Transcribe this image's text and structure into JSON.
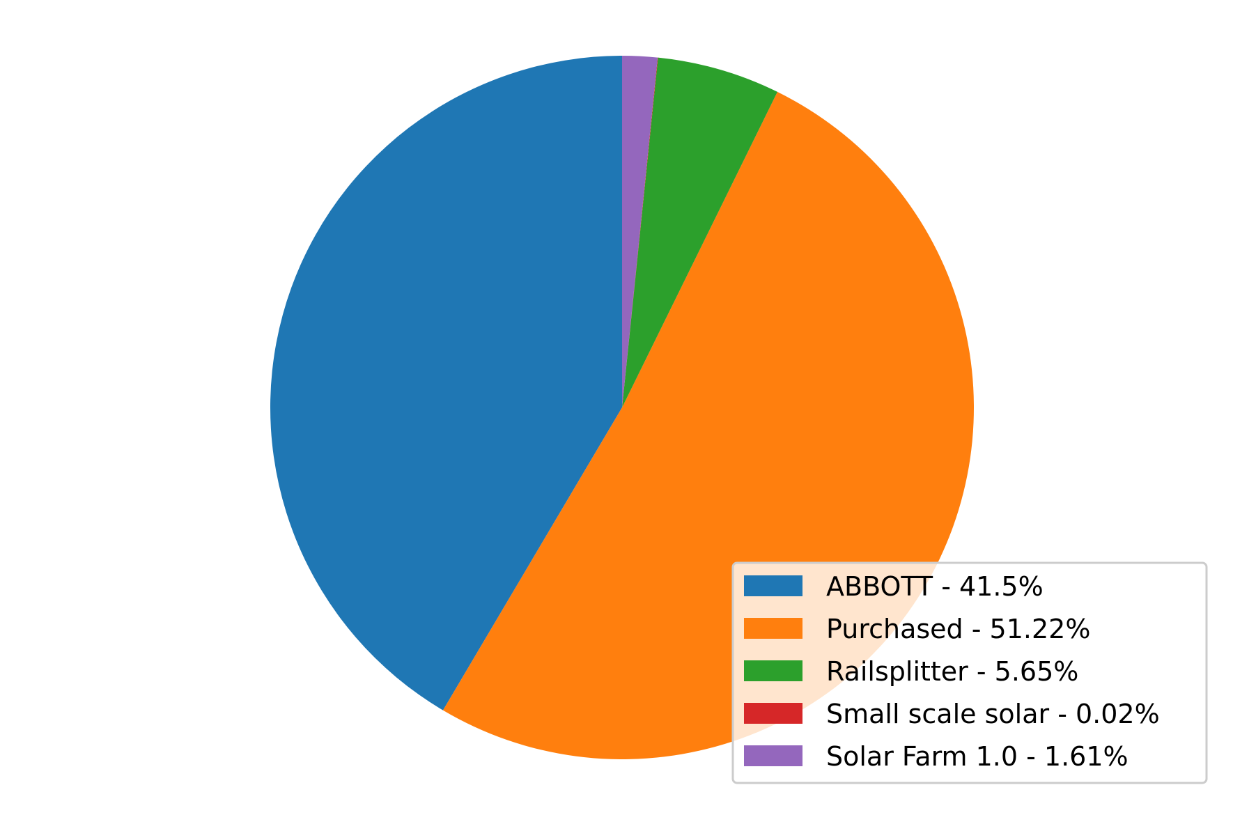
{
  "chart_data": {
    "type": "pie",
    "title": "",
    "categories": [
      "ABBOTT",
      "Purchased",
      "Railsplitter",
      "Small scale solar",
      "Solar Farm 1.0"
    ],
    "values": [
      41.5,
      51.22,
      5.65,
      0.02,
      1.61
    ],
    "colors": [
      "#1f77b4",
      "#ff7f0e",
      "#2ca02c",
      "#d62728",
      "#9467bd"
    ],
    "legend": {
      "placement": "lower-right",
      "entries": [
        "ABBOTT - 41.5%",
        "Purchased - 51.22%",
        "Railsplitter - 5.65%",
        "Small scale solar - 0.02%",
        "Solar Farm 1.0 - 1.61%"
      ]
    },
    "start_angle": "12 o'clock",
    "direction": "counterclockwise"
  }
}
